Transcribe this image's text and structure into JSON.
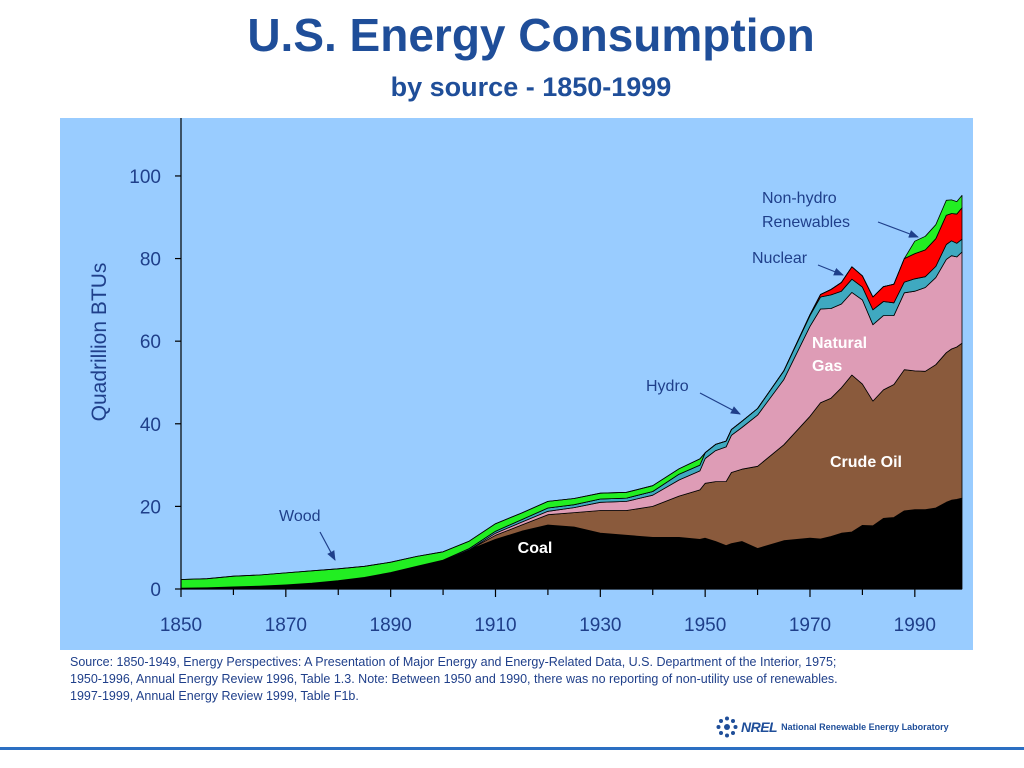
{
  "title": "U.S. Energy Consumption",
  "subtitle": "by source - 1850-1999",
  "chart_data": {
    "type": "area",
    "stacked": true,
    "ylabel": "Quadrillion BTUs",
    "xlim": [
      1850,
      1999
    ],
    "ylim": [
      0,
      115
    ],
    "yticks": [
      0,
      20,
      40,
      60,
      80,
      100
    ],
    "xticks": [
      1850,
      1870,
      1890,
      1910,
      1930,
      1950,
      1970,
      1990
    ],
    "x": [
      1850,
      1855,
      1860,
      1865,
      1870,
      1875,
      1880,
      1885,
      1890,
      1895,
      1900,
      1905,
      1910,
      1915,
      1920,
      1925,
      1930,
      1935,
      1940,
      1945,
      1949,
      1950,
      1952,
      1954,
      1955,
      1957,
      1960,
      1965,
      1970,
      1972,
      1974,
      1976,
      1978,
      1980,
      1982,
      1984,
      1986,
      1988,
      1990,
      1992,
      1994,
      1996,
      1997,
      1998,
      1999
    ],
    "series": [
      {
        "name": "Coal",
        "color": "#000000",
        "values": [
          0.2,
          0.3,
          0.5,
          0.7,
          1.0,
          1.4,
          2.0,
          2.8,
          4.0,
          5.5,
          6.8,
          9.5,
          12.0,
          14.0,
          15.5,
          15.0,
          13.5,
          13.0,
          12.5,
          12.5,
          12.0,
          12.3,
          11.5,
          10.5,
          11.0,
          11.5,
          9.8,
          11.7,
          12.3,
          12.1,
          12.7,
          13.5,
          13.8,
          15.4,
          15.3,
          17.1,
          17.3,
          18.9,
          19.2,
          19.2,
          19.6,
          21.0,
          21.5,
          21.7,
          22.0
        ]
      },
      {
        "name": "Crude Oil",
        "color": "#8a5a3c",
        "values": [
          0,
          0,
          0,
          0,
          0,
          0,
          0,
          0,
          0,
          0,
          0,
          0,
          1.0,
          1.5,
          2.5,
          3.5,
          5.5,
          6.0,
          7.5,
          10.0,
          12.0,
          13.3,
          14.5,
          15.5,
          17.2,
          17.5,
          19.9,
          23.2,
          29.5,
          33.0,
          33.5,
          35.2,
          38.0,
          34.2,
          30.2,
          31.1,
          32.2,
          34.2,
          33.6,
          33.5,
          34.7,
          36.2,
          36.6,
          36.9,
          37.5
        ]
      },
      {
        "name": "Natural Gas",
        "color": "#de9cb6",
        "values": [
          0,
          0,
          0,
          0,
          0,
          0,
          0,
          0,
          0,
          0,
          0,
          0,
          0.5,
          0.7,
          0.8,
          1.2,
          2.0,
          2.2,
          2.7,
          3.9,
          4.6,
          6.0,
          7.5,
          8.4,
          9.0,
          10.1,
          12.4,
          15.8,
          21.8,
          22.7,
          21.7,
          20.3,
          20.0,
          20.4,
          18.5,
          18.0,
          16.7,
          18.6,
          19.3,
          20.3,
          21.1,
          22.6,
          22.6,
          21.8,
          22.1
        ]
      },
      {
        "name": "Hydro",
        "color": "#3fa9c0",
        "values": [
          0,
          0,
          0,
          0,
          0,
          0,
          0,
          0,
          0,
          0,
          0.2,
          0.3,
          0.5,
          0.6,
          0.8,
          0.7,
          0.8,
          0.8,
          0.9,
          1.4,
          1.4,
          1.4,
          1.5,
          1.4,
          1.4,
          1.5,
          1.6,
          2.1,
          2.6,
          2.9,
          3.3,
          3.1,
          3.2,
          3.1,
          3.6,
          3.4,
          3.1,
          2.6,
          3.0,
          2.6,
          2.7,
          3.6,
          3.6,
          3.3,
          3.1
        ]
      },
      {
        "name": "Nuclear",
        "color": "#ff0000",
        "values": [
          0,
          0,
          0,
          0,
          0,
          0,
          0,
          0,
          0,
          0,
          0,
          0,
          0,
          0,
          0,
          0,
          0,
          0,
          0,
          0,
          0,
          0,
          0,
          0,
          0,
          0,
          0,
          0,
          0.2,
          0.6,
          1.3,
          2.1,
          3.0,
          2.7,
          3.1,
          3.6,
          4.5,
          5.7,
          6.1,
          6.5,
          6.7,
          7.1,
          6.6,
          7.1,
          7.6
        ]
      },
      {
        "name": "Wood",
        "color": "#22ee22",
        "values": [
          2.1,
          2.2,
          2.6,
          2.7,
          2.9,
          3.0,
          2.9,
          2.7,
          2.5,
          2.4,
          2.0,
          1.8,
          1.8,
          1.6,
          1.6,
          1.5,
          1.4,
          1.4,
          1.4,
          1.3,
          1.5,
          0,
          0,
          0,
          0,
          0,
          0,
          0,
          0,
          0,
          0,
          0,
          0,
          0,
          0,
          0,
          0,
          0,
          0,
          0,
          0,
          0,
          0,
          0,
          0
        ]
      },
      {
        "name": "Non-hydro Renewables",
        "color": "#22ee22",
        "values": [
          0,
          0,
          0,
          0,
          0,
          0,
          0,
          0,
          0,
          0,
          0,
          0,
          0,
          0,
          0,
          0,
          0,
          0,
          0,
          0,
          0,
          0,
          0,
          0,
          0,
          0,
          0,
          0,
          0,
          0,
          0,
          0,
          0,
          0,
          0,
          0,
          0,
          0,
          3.0,
          3.3,
          3.4,
          3.6,
          3.3,
          3.0,
          3.0
        ]
      }
    ],
    "labels": {
      "coal": "Coal",
      "crude_oil": "Crude Oil",
      "natural_gas_1": "Natural",
      "natural_gas_2": "Gas",
      "hydro": "Hydro",
      "nuclear": "Nuclear",
      "nonhydro_1": "Non-hydro",
      "nonhydro_2": "Renewables",
      "wood": "Wood"
    },
    "colors": {
      "plot_background": "#99ccff",
      "axis": "#000000",
      "tick_text": "#1f3f8a",
      "label_text": "#1f3f8a"
    }
  },
  "source_lines": [
    "Source:  1850-1949, Energy Perspectives:  A Presentation of Major Energy and Energy-Related Data, U.S. Department of the Interior, 1975;",
    "1950-1996, Annual Energy Review 1996, Table 1.3.  Note:  Between 1950 and 1990, there was no reporting of non-utility use of renewables.",
    "1997-1999, Annual Energy Review 1999, Table F1b."
  ],
  "logo": {
    "short": "NREL",
    "full": "National Renewable Energy Laboratory",
    "icon": "nrel-logo-icon"
  }
}
